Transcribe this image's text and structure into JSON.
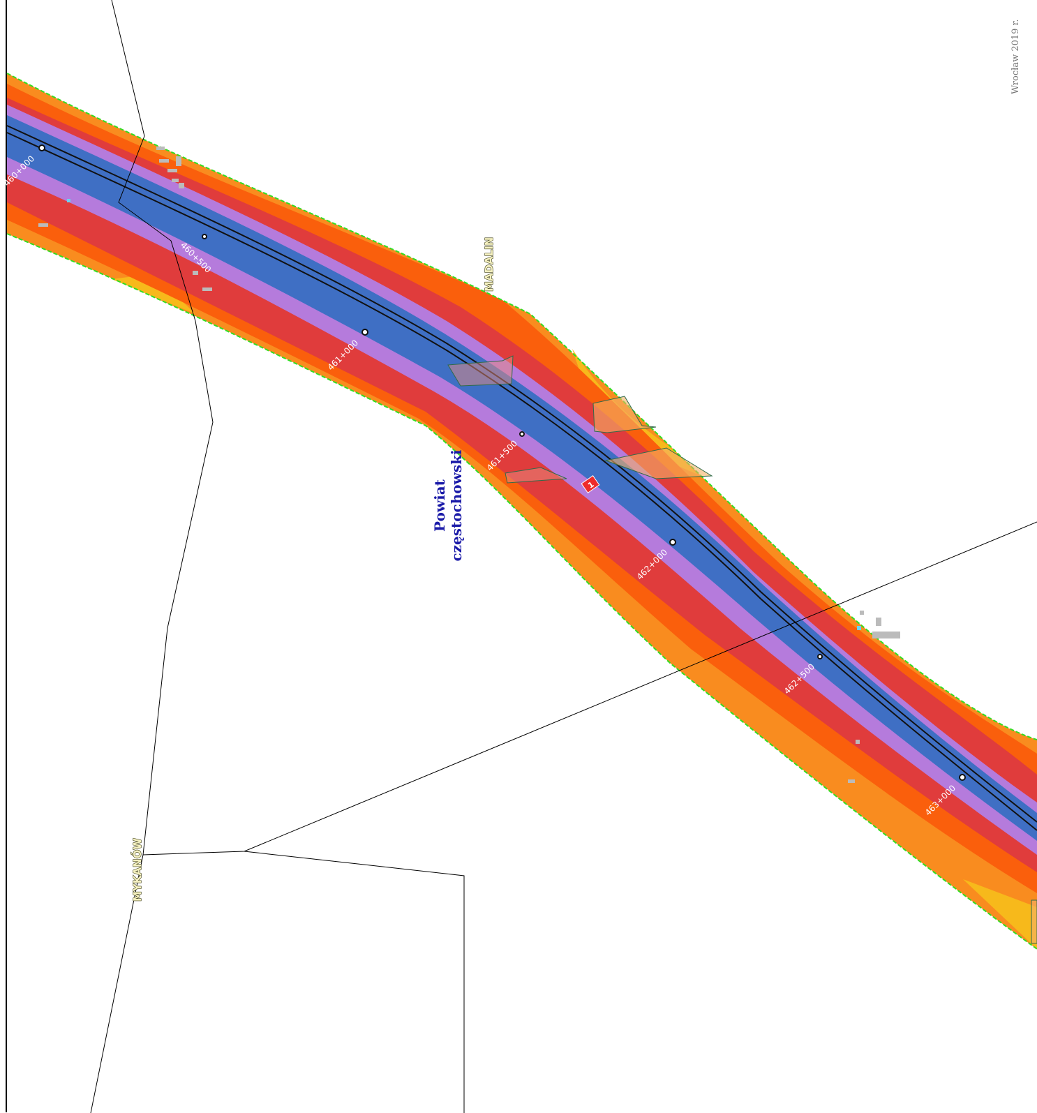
{
  "map": {
    "stamp": "Wrocław  2019 r.",
    "places": {
      "madalin": "MADALIN",
      "mykanow": "MYKANÓW"
    },
    "district": {
      "line1": "Powiat",
      "line2": "częstochowski"
    },
    "chainage": [
      "460+000",
      "460+500",
      "461+000",
      "461+500",
      "462+000",
      "462+500",
      "463+000"
    ],
    "road_marker": "1",
    "colors": {
      "outer_orange": "#f98c1f",
      "orange": "#fa5f0c",
      "red": "#e03c3c",
      "violet": "#b57bdc",
      "blue": "#3f6fc4",
      "yellow": "#f7b91b",
      "buffer_outline": "#33dd22",
      "district_label": "#1a1aa8",
      "boundary": "#000000"
    }
  }
}
